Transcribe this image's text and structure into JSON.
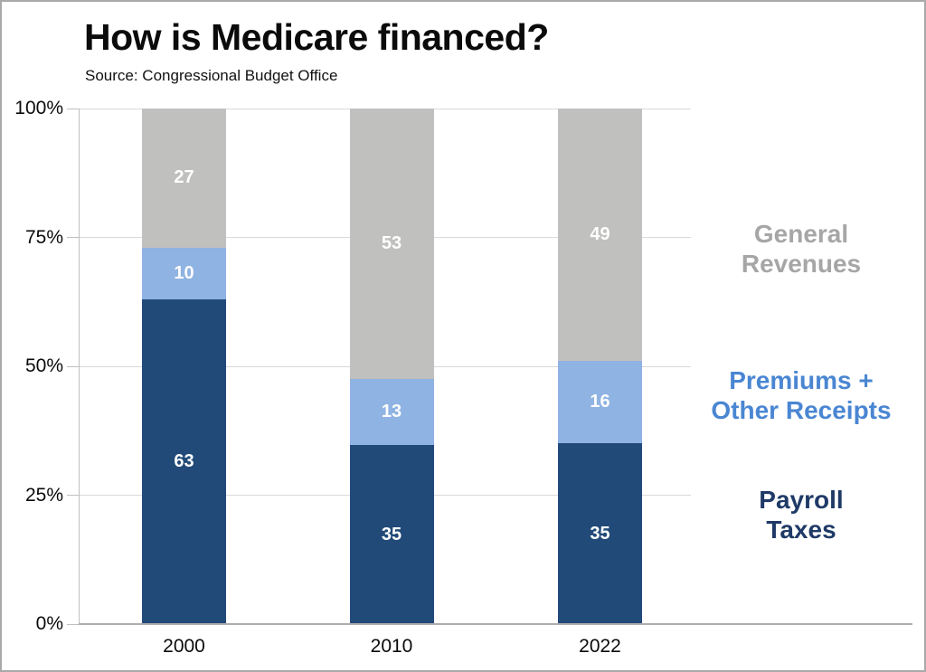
{
  "title": "How is Medicare financed?",
  "source": "Source: Congressional Budget Office",
  "chart_data": {
    "type": "bar",
    "subtype": "stacked-percent",
    "title": "How is Medicare financed?",
    "source_note": "Source: Congressional Budget Office",
    "categories": [
      "2000",
      "2010",
      "2022"
    ],
    "series": [
      {
        "name": "Payroll Taxes",
        "color": "#214A78",
        "values": [
          63,
          35,
          35
        ]
      },
      {
        "name": "Premiums + Other Receipts",
        "color": "#8FB3E2",
        "values": [
          10,
          13,
          16
        ]
      },
      {
        "name": "General Revenues",
        "color": "#C0C0BF",
        "values": [
          27,
          53,
          49
        ]
      }
    ],
    "ylim": [
      0,
      100
    ],
    "y_ticks": [
      "0%",
      "25%",
      "50%",
      "75%",
      "100%"
    ],
    "grid": true,
    "value_labels": "inside-center",
    "legend_position": "right"
  },
  "legend": {
    "items": [
      {
        "series": "General Revenues",
        "label_lines": [
          "General",
          "Revenues"
        ],
        "color": "#A6A6A6"
      },
      {
        "series": "Premiums + Other Receipts",
        "label_lines": [
          "Premiums +",
          "Other Receipts"
        ],
        "color": "#4A86D2"
      },
      {
        "series": "Payroll Taxes",
        "label_lines": [
          "Payroll",
          "Taxes"
        ],
        "color": "#1F3A67"
      }
    ]
  }
}
